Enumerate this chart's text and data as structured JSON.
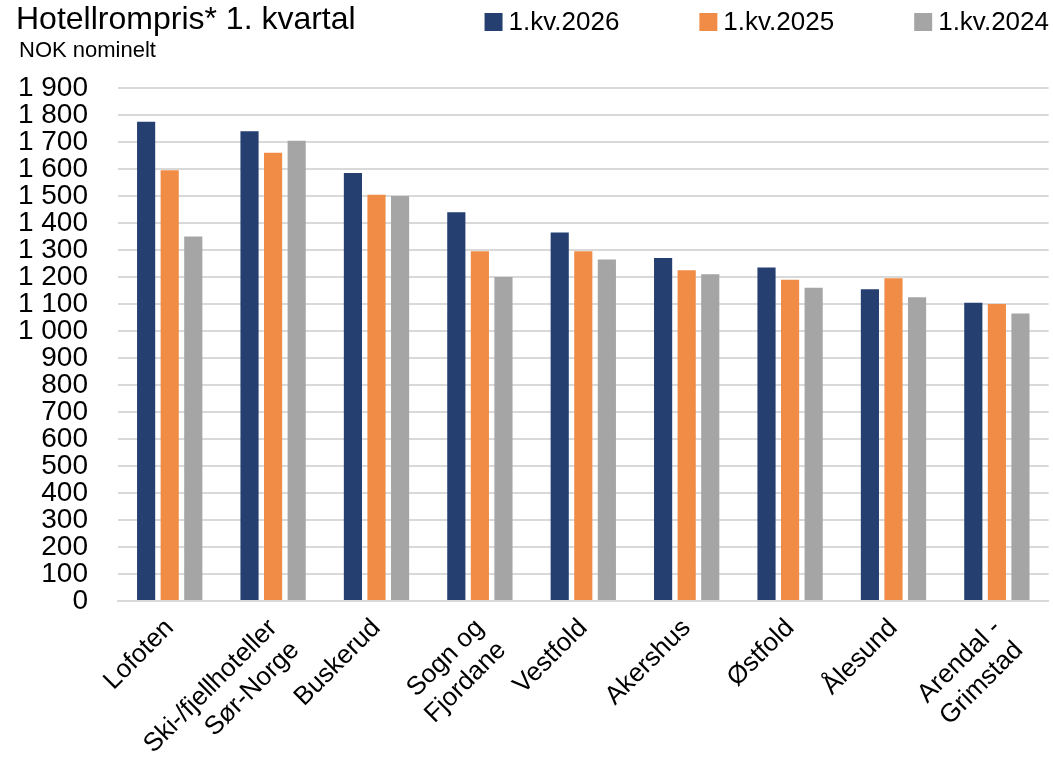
{
  "chart_data": {
    "type": "bar",
    "title": "Hotellrompris* 1. kvartal",
    "subtitle": "NOK nominelt",
    "categories": [
      "Lofoten",
      "Ski-/fjellhoteller\nSør-Norge",
      "Buskerud",
      "Sogn og\nFjordane",
      "Vestfold",
      "Akershus",
      "Østfold",
      "Ålesund",
      "Arendal -\nGrimstad"
    ],
    "series": [
      {
        "name": "1.kv.2026",
        "color": "#243f70",
        "values": [
          1775,
          1740,
          1585,
          1440,
          1365,
          1270,
          1235,
          1155,
          1105
        ]
      },
      {
        "name": "1.kv.2025",
        "color": "#f08c46",
        "values": [
          1595,
          1660,
          1505,
          1295,
          1295,
          1225,
          1190,
          1195,
          1100
        ]
      },
      {
        "name": "1.kv.2024",
        "color": "#a5a5a5",
        "values": [
          1350,
          1705,
          1500,
          1200,
          1265,
          1210,
          1160,
          1125,
          1065
        ]
      }
    ],
    "ylim": [
      0,
      1900
    ],
    "yticks": [
      0,
      100,
      200,
      300,
      400,
      500,
      600,
      700,
      800,
      900,
      {
        "value": 1000,
        "label": "1 000"
      },
      {
        "value": 1100,
        "label": "1 100"
      },
      {
        "value": 1200,
        "label": "1 200"
      },
      {
        "value": 1300,
        "label": "1 300"
      },
      {
        "value": 1400,
        "label": "1 400"
      },
      {
        "value": 1500,
        "label": "1 500"
      },
      {
        "value": 1600,
        "label": "1 600"
      },
      {
        "value": 1700,
        "label": "1 700"
      },
      {
        "value": 1800,
        "label": "1 800"
      },
      {
        "value": 1900,
        "label": "1 900"
      }
    ],
    "grid": "y",
    "legend": "top right"
  }
}
